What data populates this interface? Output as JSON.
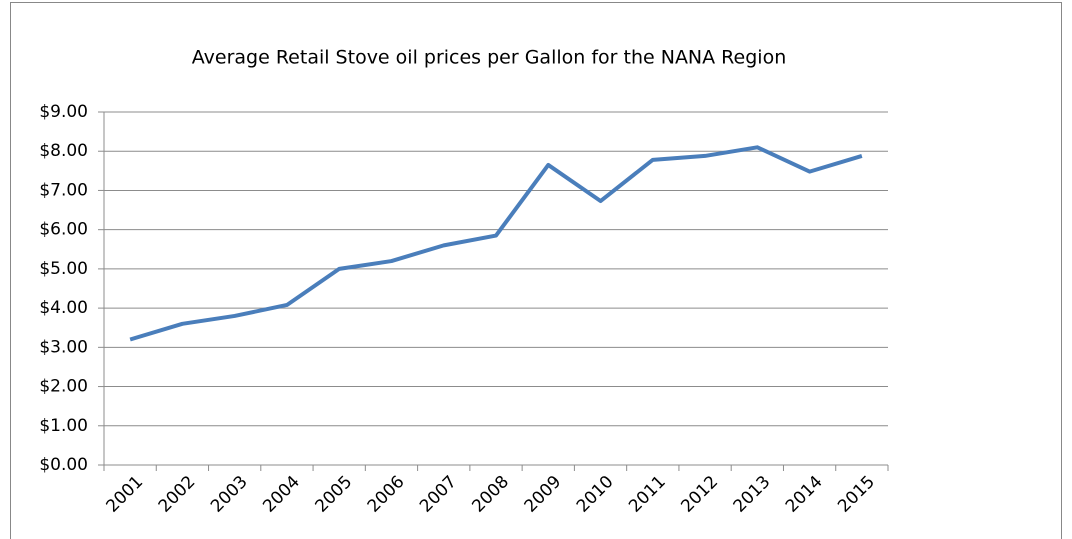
{
  "chart_data": {
    "type": "line",
    "title": "Average Retail Stove oil prices per Gallon for the NANA Region",
    "categories": [
      "2001",
      "2002",
      "2003",
      "2004",
      "2005",
      "2006",
      "2007",
      "2008",
      "2009",
      "2010",
      "2011",
      "2012",
      "2013",
      "2014",
      "2015"
    ],
    "series": [
      {
        "name": "Average Retail Stove oil price",
        "color": "#4a7ebb",
        "values": [
          3.2,
          3.6,
          3.8,
          4.08,
          5.0,
          5.2,
          5.6,
          5.85,
          7.65,
          6.73,
          7.78,
          7.88,
          8.1,
          7.48,
          7.88
        ]
      }
    ],
    "ylim": [
      0,
      9
    ],
    "yticks": [
      {
        "value": 0,
        "label": "$0.00"
      },
      {
        "value": 1,
        "label": "$1.00"
      },
      {
        "value": 2,
        "label": "$2.00"
      },
      {
        "value": 3,
        "label": "$3.00"
      },
      {
        "value": 4,
        "label": "$4.00"
      },
      {
        "value": 5,
        "label": "$5.00"
      },
      {
        "value": 6,
        "label": "$6.00"
      },
      {
        "value": 7,
        "label": "$7.00"
      },
      {
        "value": 8,
        "label": "$8.00"
      },
      {
        "value": 9,
        "label": "$9.00"
      }
    ],
    "grid": true
  }
}
